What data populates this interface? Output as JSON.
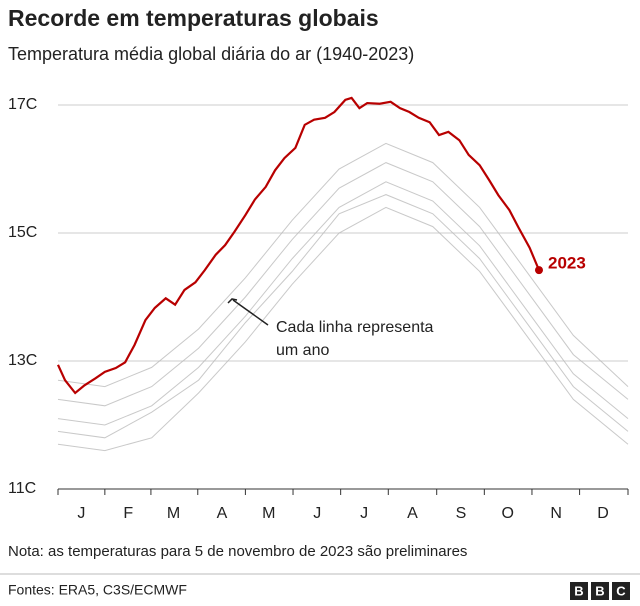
{
  "chart_data": {
    "type": "line",
    "title": "Recorde em temperaturas globais",
    "subtitle": "Temperatura média global diária do ar (1940-2023)",
    "xlim": [
      0,
      365
    ],
    "xticks": [
      {
        "value": 15,
        "label": "J"
      },
      {
        "value": 45,
        "label": "F"
      },
      {
        "value": 74,
        "label": "M"
      },
      {
        "value": 105,
        "label": "A"
      },
      {
        "value": 135,
        "label": "M"
      },
      {
        "value": 166,
        "label": "J"
      },
      {
        "value": 196,
        "label": "J"
      },
      {
        "value": 227,
        "label": "A"
      },
      {
        "value": 258,
        "label": "S"
      },
      {
        "value": 288,
        "label": "O"
      },
      {
        "value": 319,
        "label": "N"
      },
      {
        "value": 349,
        "label": "D"
      }
    ],
    "ylim": [
      11,
      17.2
    ],
    "yticks": [
      {
        "value": 11,
        "label": "11C"
      },
      {
        "value": 13,
        "label": "13C"
      },
      {
        "value": 15,
        "label": "15C"
      },
      {
        "value": 17,
        "label": "17C"
      }
    ],
    "grid": true,
    "annotation": [
      "Cada linha representa",
      "um ano"
    ],
    "note": "Nota: as temperaturas para 5 de novembro de 2023 são preliminares",
    "source": "Fontes: ERA5, C3S/ECMWF",
    "series": [
      {
        "color": "#bbbbbb",
        "x": [
          0,
          30,
          60,
          90,
          120,
          150,
          180,
          210,
          240,
          270,
          300,
          330,
          365
        ],
        "values": [
          11.7,
          11.6,
          11.8,
          12.5,
          13.3,
          14.2,
          15.0,
          15.4,
          15.1,
          14.4,
          13.4,
          12.4,
          11.7
        ]
      },
      {
        "color": "#bbbbbb",
        "x": [
          0,
          30,
          60,
          90,
          120,
          150,
          180,
          210,
          240,
          270,
          300,
          330,
          365
        ],
        "values": [
          11.9,
          11.8,
          12.2,
          12.7,
          13.6,
          14.4,
          15.3,
          15.6,
          15.3,
          14.6,
          13.6,
          12.6,
          11.9
        ]
      },
      {
        "color": "#bbbbbb",
        "x": [
          0,
          30,
          60,
          90,
          120,
          150,
          180,
          210,
          240,
          270,
          300,
          330,
          365
        ],
        "values": [
          12.1,
          12.0,
          12.3,
          12.9,
          13.7,
          14.6,
          15.4,
          15.8,
          15.5,
          14.8,
          13.8,
          12.8,
          12.1
        ]
      },
      {
        "color": "#bbbbbb",
        "x": [
          0,
          30,
          60,
          90,
          120,
          150,
          180,
          210,
          240,
          270,
          300,
          330,
          365
        ],
        "values": [
          12.4,
          12.3,
          12.6,
          13.2,
          14.0,
          14.9,
          15.7,
          16.1,
          15.8,
          15.1,
          14.1,
          13.1,
          12.4
        ]
      },
      {
        "color": "#bbbbbb",
        "x": [
          0,
          30,
          60,
          90,
          120,
          150,
          180,
          210,
          240,
          270,
          300,
          330,
          365
        ],
        "values": [
          12.7,
          12.6,
          12.9,
          13.5,
          14.3,
          15.2,
          16.0,
          16.4,
          16.1,
          15.4,
          14.4,
          13.4,
          12.6
        ]
      },
      {
        "name": "2023",
        "color": "#b80000",
        "x": [
          0,
          4.5,
          11,
          17,
          24,
          30,
          37,
          43,
          49,
          56,
          62,
          69,
          75,
          81,
          88,
          94,
          101,
          107,
          113,
          120,
          126,
          133,
          139,
          145,
          152,
          158,
          164,
          171,
          177,
          184,
          188,
          193,
          198,
          206,
          213,
          219,
          225,
          231,
          238,
          244,
          250,
          257,
          263,
          270,
          276,
          282,
          289,
          295,
          302,
          308
        ],
        "values": [
          12.94,
          12.7,
          12.5,
          12.62,
          12.73,
          12.83,
          12.89,
          12.98,
          13.25,
          13.64,
          13.83,
          13.98,
          13.88,
          14.11,
          14.23,
          14.42,
          14.66,
          14.81,
          15.02,
          15.28,
          15.52,
          15.72,
          15.98,
          16.17,
          16.33,
          16.69,
          16.77,
          16.8,
          16.89,
          17.08,
          17.11,
          16.95,
          17.03,
          17.02,
          17.05,
          16.95,
          16.89,
          16.8,
          16.73,
          16.53,
          16.58,
          16.45,
          16.22,
          16.06,
          15.83,
          15.59,
          15.36,
          15.08,
          14.77,
          14.42
        ]
      }
    ]
  }
}
